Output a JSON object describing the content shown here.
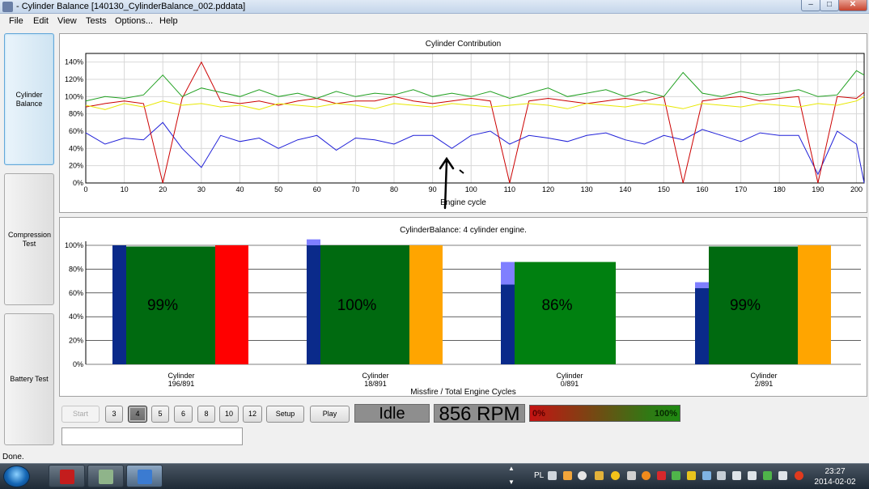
{
  "window": {
    "title": "- Cylinder Balance [140130_CylinderBalance_002.pddata]",
    "controls": {
      "minimize": "‒",
      "maximize": "□",
      "close": "✕"
    }
  },
  "menu": [
    "File",
    "Edit",
    "View",
    "Tests",
    "Options...",
    "Help"
  ],
  "nav": {
    "cylinder_balance": "Cylinder Balance",
    "compression_test": "Compression Test",
    "battery_test": "Battery Test"
  },
  "top_chart": {
    "title": "Cylinder Contribution",
    "xlabel": "Engine cycle",
    "y_ticks": [
      "0%",
      "20%",
      "40%",
      "60%",
      "80%",
      "100%",
      "120%",
      "140%"
    ],
    "x_ticks": [
      "0",
      "10",
      "20",
      "30",
      "40",
      "50",
      "60",
      "70",
      "80",
      "90",
      "100",
      "110",
      "120",
      "130",
      "140",
      "150",
      "160",
      "170",
      "180",
      "190",
      "200"
    ]
  },
  "bottom_chart": {
    "title": "CylinderBalance: 4 cylinder engine.",
    "xlabel": "Missfire / Total Engine Cycles",
    "y_ticks": [
      "0%",
      "20%",
      "40%",
      "60%",
      "80%",
      "100%"
    ]
  },
  "chart_data": [
    {
      "type": "line",
      "title": "Cylinder Contribution",
      "xlabel": "Engine cycle",
      "ylabel": "",
      "xlim": [
        0,
        202
      ],
      "ylim": [
        0,
        150
      ],
      "grid": true,
      "series": [
        {
          "color": "#2020d8",
          "x": [
            0,
            5,
            10,
            15,
            20,
            25,
            30,
            35,
            40,
            45,
            50,
            55,
            60,
            65,
            70,
            75,
            80,
            85,
            90,
            95,
            100,
            105,
            110,
            115,
            120,
            125,
            130,
            135,
            140,
            145,
            150,
            155,
            160,
            165,
            170,
            175,
            180,
            185,
            190,
            195,
            200,
            202
          ],
          "y": [
            58,
            45,
            52,
            50,
            70,
            40,
            18,
            55,
            48,
            52,
            40,
            50,
            55,
            38,
            52,
            50,
            45,
            55,
            55,
            40,
            55,
            60,
            45,
            55,
            52,
            48,
            55,
            58,
            50,
            45,
            55,
            50,
            62,
            55,
            48,
            58,
            55,
            55,
            10,
            60,
            45,
            0
          ]
        },
        {
          "color": "#cc0000",
          "x": [
            0,
            5,
            10,
            15,
            20,
            25,
            30,
            35,
            40,
            45,
            50,
            55,
            60,
            65,
            70,
            75,
            80,
            85,
            90,
            95,
            100,
            105,
            110,
            115,
            120,
            125,
            130,
            135,
            140,
            145,
            150,
            155,
            160,
            165,
            170,
            175,
            180,
            185,
            190,
            195,
            200,
            202
          ],
          "y": [
            88,
            92,
            95,
            92,
            0,
            98,
            140,
            95,
            92,
            95,
            90,
            95,
            98,
            92,
            95,
            95,
            100,
            95,
            92,
            95,
            98,
            95,
            0,
            95,
            98,
            95,
            92,
            95,
            98,
            95,
            100,
            0,
            95,
            98,
            100,
            95,
            98,
            100,
            0,
            100,
            98,
            105
          ]
        },
        {
          "color": "#20a020",
          "x": [
            0,
            5,
            10,
            15,
            20,
            25,
            30,
            35,
            40,
            45,
            50,
            55,
            60,
            65,
            70,
            75,
            80,
            85,
            90,
            95,
            100,
            105,
            110,
            115,
            120,
            125,
            130,
            135,
            140,
            145,
            150,
            155,
            160,
            165,
            170,
            175,
            180,
            185,
            190,
            195,
            200,
            202
          ],
          "y": [
            95,
            100,
            98,
            102,
            125,
            100,
            110,
            105,
            100,
            108,
            100,
            104,
            98,
            106,
            100,
            104,
            102,
            108,
            100,
            104,
            100,
            106,
            98,
            104,
            110,
            100,
            104,
            108,
            100,
            106,
            100,
            128,
            104,
            100,
            106,
            102,
            104,
            108,
            100,
            102,
            130,
            125
          ]
        },
        {
          "color": "#e8e800",
          "x": [
            0,
            5,
            10,
            15,
            20,
            25,
            30,
            35,
            40,
            45,
            50,
            55,
            60,
            65,
            70,
            75,
            80,
            85,
            90,
            95,
            100,
            105,
            110,
            115,
            120,
            125,
            130,
            135,
            140,
            145,
            150,
            155,
            160,
            165,
            170,
            175,
            180,
            185,
            190,
            195,
            200,
            202
          ],
          "y": [
            90,
            85,
            92,
            88,
            95,
            90,
            92,
            88,
            90,
            85,
            92,
            90,
            88,
            92,
            90,
            86,
            92,
            90,
            88,
            92,
            90,
            88,
            90,
            92,
            90,
            86,
            92,
            90,
            88,
            92,
            90,
            86,
            92,
            90,
            88,
            92,
            90,
            88,
            92,
            90,
            95,
            100
          ]
        }
      ]
    },
    {
      "type": "bar",
      "title": "CylinderBalance: 4 cylinder engine.",
      "xlabel": "Missfire / Total Engine Cycles",
      "ylim": [
        0,
        100
      ],
      "grid": true,
      "cylinders": [
        {
          "label": "Cylinder",
          "missfire": "196/891",
          "contribution_label": "99%",
          "contribution": 99,
          "blue_value": 100,
          "light_blue_value": 0,
          "right_color": "#ff0000",
          "right_value": 100
        },
        {
          "label": "Cylinder",
          "missfire": "18/891",
          "contribution_label": "100%",
          "contribution": 100,
          "blue_value": 100,
          "light_blue_value": 5,
          "right_color": "#ffa500",
          "right_value": 100
        },
        {
          "label": "Cylinder",
          "missfire": "0/891",
          "contribution_label": "86%",
          "contribution": 86,
          "blue_value": 67,
          "light_blue_value": 19,
          "right_color": "",
          "right_value": 0
        },
        {
          "label": "Cylinder",
          "missfire": "2/891",
          "contribution_label": "99%",
          "contribution": 99,
          "blue_value": 64,
          "light_blue_value": 5,
          "right_color": "#ffa500",
          "right_value": 100
        }
      ]
    }
  ],
  "controls": {
    "start": "Start",
    "cylinder_counts": [
      "3",
      "4",
      "5",
      "6",
      "8",
      "10",
      "12"
    ],
    "setup": "Setup",
    "play": "Play",
    "idle_status": "Idle",
    "rpm": "856 RPM",
    "progress_left": "0%",
    "progress_right": "100%"
  },
  "status_bar": "Done.",
  "taskbar": {
    "language": "PL",
    "time": "23:27",
    "date": "2014-02-02",
    "scroll_up": "▲",
    "scroll_down": "▼"
  }
}
